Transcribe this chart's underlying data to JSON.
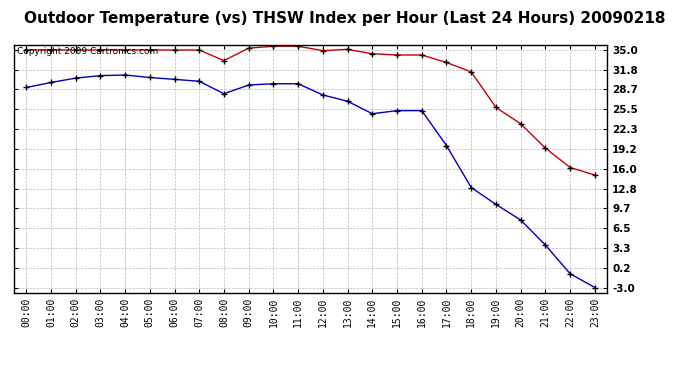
{
  "title": "Outdoor Temperature (vs) THSW Index per Hour (Last 24 Hours) 20090218",
  "copyright": "Copyright 2009 Cartronics.com",
  "hours": [
    "00:00",
    "01:00",
    "02:00",
    "03:00",
    "04:00",
    "05:00",
    "06:00",
    "07:00",
    "08:00",
    "09:00",
    "10:00",
    "11:00",
    "12:00",
    "13:00",
    "14:00",
    "15:00",
    "16:00",
    "17:00",
    "18:00",
    "19:00",
    "20:00",
    "21:00",
    "22:00",
    "23:00"
  ],
  "temp_blue": [
    29.0,
    29.8,
    30.5,
    30.9,
    31.0,
    30.6,
    30.3,
    30.0,
    28.0,
    29.4,
    29.6,
    29.6,
    27.8,
    26.8,
    24.8,
    25.3,
    25.3,
    19.7,
    13.0,
    10.3,
    7.8,
    3.8,
    -0.8,
    -3.0
  ],
  "thsw_red": [
    35.0,
    35.0,
    35.0,
    35.0,
    35.0,
    35.0,
    35.0,
    35.0,
    33.3,
    35.3,
    35.6,
    35.6,
    34.9,
    35.1,
    34.4,
    34.2,
    34.2,
    33.0,
    31.5,
    25.8,
    23.2,
    19.3,
    16.2,
    15.0
  ],
  "ylim_min": -3.0,
  "ylim_max": 35.0,
  "yticks": [
    35.0,
    31.8,
    28.7,
    25.5,
    22.3,
    19.2,
    16.0,
    12.8,
    9.7,
    6.5,
    3.3,
    0.2,
    -3.0
  ],
  "blue_color": "#0000bb",
  "red_color": "#cc0000",
  "bg_color": "#ffffff",
  "grid_color": "#bbbbbb",
  "title_fontsize": 11,
  "copyright_fontsize": 6.5
}
